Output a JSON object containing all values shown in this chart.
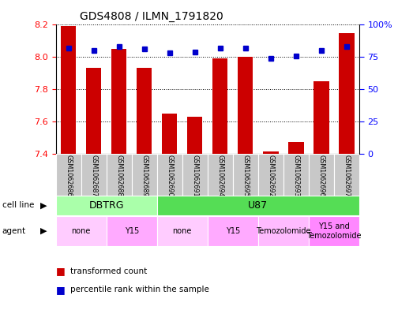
{
  "title": "GDS4808 / ILMN_1791820",
  "samples": [
    "GSM1062686",
    "GSM1062687",
    "GSM1062688",
    "GSM1062689",
    "GSM1062690",
    "GSM1062691",
    "GSM1062694",
    "GSM1062695",
    "GSM1062692",
    "GSM1062693",
    "GSM1062696",
    "GSM1062697"
  ],
  "transformed_counts": [
    8.19,
    7.93,
    8.05,
    7.93,
    7.65,
    7.63,
    7.99,
    8.0,
    7.41,
    7.47,
    7.85,
    8.15
  ],
  "percentile_ranks": [
    82,
    80,
    83,
    81,
    78,
    79,
    82,
    82,
    74,
    76,
    80,
    83
  ],
  "ylim_left": [
    7.4,
    8.2
  ],
  "ylim_right": [
    0,
    100
  ],
  "yticks_left": [
    7.4,
    7.6,
    7.8,
    8.0,
    8.2
  ],
  "yticks_right_vals": [
    0,
    25,
    50,
    75,
    100
  ],
  "yticks_right_labels": [
    "0",
    "25",
    "50",
    "75",
    "100%"
  ],
  "bar_color": "#cc0000",
  "dot_color": "#0000cc",
  "cell_line_groups": [
    {
      "label": "DBTRG",
      "start": 0,
      "end": 4,
      "color": "#aaffaa"
    },
    {
      "label": "U87",
      "start": 4,
      "end": 12,
      "color": "#55dd55"
    }
  ],
  "agent_groups": [
    {
      "label": "none",
      "start": 0,
      "end": 2,
      "color": "#ffccff"
    },
    {
      "label": "Y15",
      "start": 2,
      "end": 4,
      "color": "#ffaaff"
    },
    {
      "label": "none",
      "start": 4,
      "end": 6,
      "color": "#ffccff"
    },
    {
      "label": "Y15",
      "start": 6,
      "end": 8,
      "color": "#ffaaff"
    },
    {
      "label": "Temozolomide",
      "start": 8,
      "end": 10,
      "color": "#ffbbff"
    },
    {
      "label": "Y15 and\nTemozolomide",
      "start": 10,
      "end": 12,
      "color": "#ff88ff"
    }
  ],
  "legend_bar_label": "transformed count",
  "legend_dot_label": "percentile rank within the sample",
  "bar_width": 0.6,
  "dot_size": 5
}
